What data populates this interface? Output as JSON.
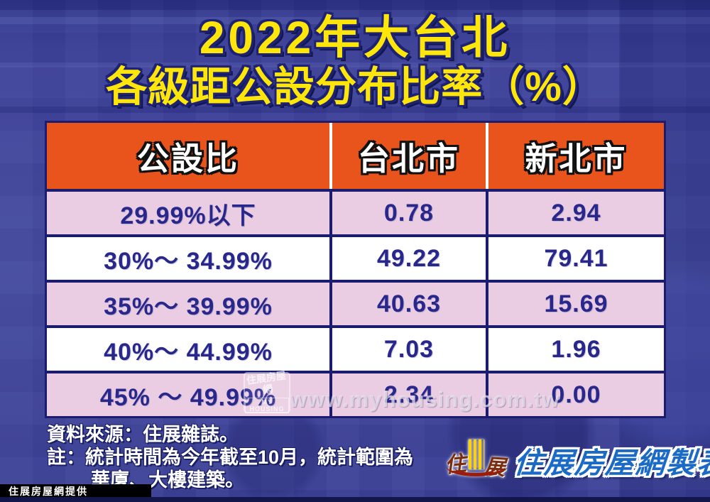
{
  "title": {
    "line1": "2022年大台北",
    "line2": "各級距公設分布比率（%）"
  },
  "chart_data": {
    "type": "table",
    "title": "2022年大台北各級距公設分布比率（%）",
    "unit": "%",
    "columns": [
      "公設比",
      "台北市",
      "新北市"
    ],
    "rows": [
      [
        "29.99%以下",
        "0.78",
        "2.94"
      ],
      [
        "30%～ 34.99%",
        "49.22",
        "79.41"
      ],
      [
        "35%～ 39.99%",
        "40.63",
        "15.69"
      ],
      [
        "40%～ 44.99%",
        "7.03",
        "1.96"
      ],
      [
        "45% ～ 49.99%",
        "2.34",
        "0.00"
      ]
    ],
    "series": [
      {
        "name": "台北市",
        "values": [
          0.78,
          49.22,
          40.63,
          7.03,
          2.34
        ]
      },
      {
        "name": "新北市",
        "values": [
          2.94,
          79.41,
          15.69,
          1.96,
          0.0
        ]
      }
    ],
    "categories": [
      "29.99%以下",
      "30%～34.99%",
      "35%～39.99%",
      "40%～44.99%",
      "45%～49.99%"
    ]
  },
  "notes": {
    "source": "資料來源：住展雜誌。",
    "note_line1": "註：統計時間為今年截至10月，統計範圍為",
    "note_line2": "華廈、大樓建築。"
  },
  "watermark": {
    "url": "www.myhousing.com.tw",
    "logo_cn": "住展房屋網",
    "logo_en": "MY HOUSING"
  },
  "publisher": {
    "emblem_left": "住",
    "emblem_right": "展",
    "credit": "住展房屋網製表"
  },
  "provider_strip": "住展房屋網提供",
  "colors": {
    "background": "#3D4196",
    "header_bg": "#E8541C",
    "row_pink": "#EACDE3",
    "row_white": "#FFFFFF",
    "table_border": "#1B1C6E",
    "cell_text": "#28288C",
    "title_yellow": "#FFE60A",
    "publisher_blue": "#1A6AC6"
  }
}
